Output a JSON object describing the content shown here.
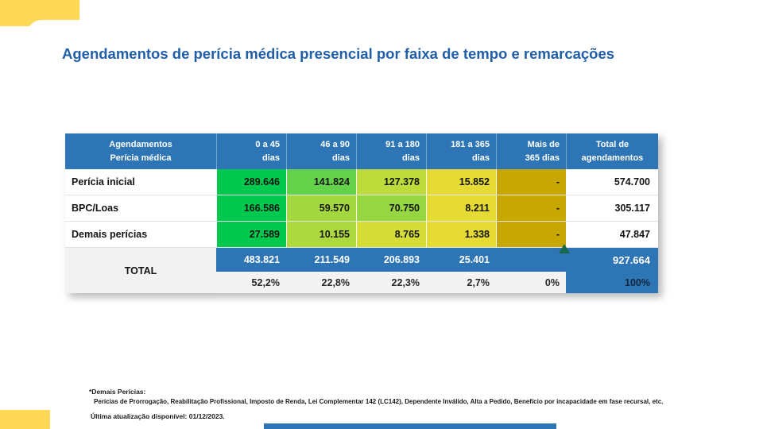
{
  "title": "Agendamentos de perícia médica presencial por faixa de tempo e remarcações",
  "chart_data": {
    "type": "table",
    "title": "Agendamentos de perícia médica presencial por faixa de tempo e remarcações",
    "column_headers": [
      [
        "Agendamentos",
        "Perícia médica"
      ],
      [
        "0 a 45",
        "dias"
      ],
      [
        "46 a 90",
        "dias"
      ],
      [
        "91 a 180",
        "dias"
      ],
      [
        "181 a 365",
        "dias"
      ],
      [
        "Mais de",
        "365 dias"
      ],
      [
        "Total de",
        "agendamentos"
      ]
    ],
    "rows": [
      {
        "label": "Perícia inicial",
        "values": [
          "289.646",
          "141.824",
          "127.378",
          "15.852",
          "-"
        ],
        "total": "574.700"
      },
      {
        "label": "BPC/Loas",
        "values": [
          "166.586",
          "59.570",
          "70.750",
          "8.211",
          "-"
        ],
        "total": "305.117"
      },
      {
        "label": "Demais perícias",
        "values": [
          "27.589",
          "10.155",
          "8.765",
          "1.338",
          "-"
        ],
        "total": "47.847"
      }
    ],
    "totals": {
      "label": "TOTAL",
      "values": [
        "483.821",
        "211.549",
        "206.893",
        "25.401",
        ""
      ],
      "total": "927.664",
      "percents": [
        "52,2%",
        "22,8%",
        "22,3%",
        "2,7%",
        "0%"
      ],
      "total_percent": "100%"
    }
  },
  "notes": {
    "line1": "*Demais Perícias:",
    "line2": "Perícias de Prorrogação, Reabilitação Profissional, Imposto de Renda, Lei Complementar 142 (LC142), Dependente Inválido, Alta a Pedido, Benefício por incapacidade em fase recursal, etc.",
    "line3": "Última atualização disponível:  01/12/2023."
  },
  "colors": {
    "title_blue": "#215EA8",
    "header_blue": "#2E75B6",
    "accent_yellow": "#FFD857",
    "marker_green": "#17694A",
    "cells": [
      [
        "#00C94D",
        "#63D24A",
        "#BEDB3C",
        "#E6DB34",
        "#C9A702"
      ],
      [
        "#00C94D",
        "#A3D840",
        "#96D643",
        "#E6DB34",
        "#C9A702"
      ],
      [
        "#00C94D",
        "#AED93E",
        "#D4DE37",
        "#E6DB34",
        "#C9A702"
      ]
    ]
  }
}
